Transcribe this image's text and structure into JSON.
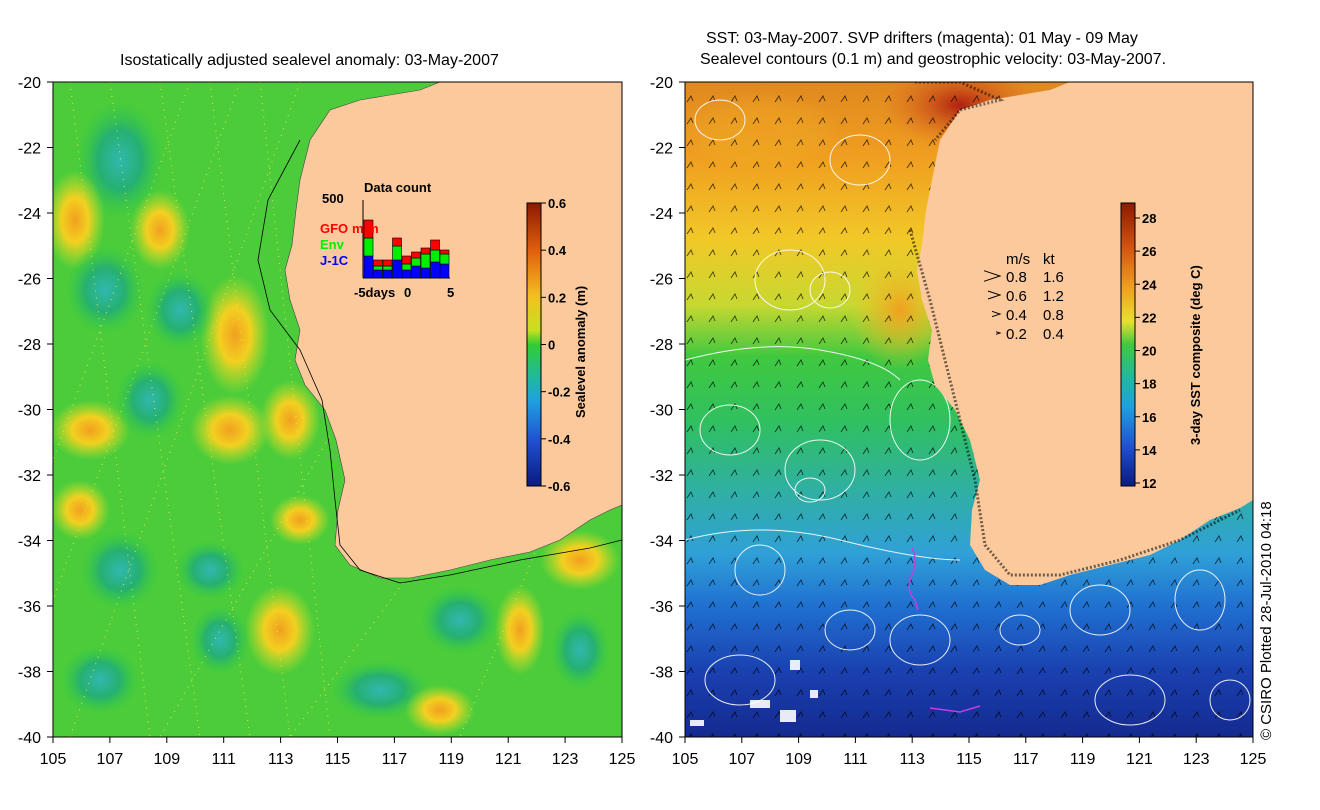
{
  "left_panel": {
    "title": "Isostatically adjusted sealevel anomaly: 03-May-2007",
    "y_ticks": [
      "-20",
      "-22",
      "-24",
      "-26",
      "-28",
      "-30",
      "-32",
      "-34",
      "-36",
      "-38",
      "-40"
    ],
    "x_ticks": [
      "105",
      "107",
      "109",
      "111",
      "113",
      "115",
      "117",
      "119",
      "121",
      "123",
      "125"
    ],
    "colorbar": {
      "label": "Sealevel anomaly (m)",
      "ticks": [
        "0.6",
        "0.4",
        "0.2",
        "0",
        "-0.2",
        "-0.4",
        "-0.6"
      ]
    },
    "inset": {
      "title": "Data count",
      "max_label": "500",
      "x_labels": [
        "-5days",
        "0",
        "5"
      ],
      "legend": [
        {
          "label": "GFO",
          "color": "#ff0000"
        },
        {
          "label": "Env",
          "color": "#00ee00"
        },
        {
          "label": "J-1C",
          "color": "#0000ff"
        }
      ],
      "gfo_suffix": "m m"
    }
  },
  "right_panel": {
    "title_line1": "SST: 03-May-2007. SVP drifters (magenta): 01 May - 09 May",
    "title_line2": "Sealevel contours (0.1 m) and geostrophic velocity: 03-May-2007.",
    "y_ticks": [
      "-20",
      "-22",
      "-24",
      "-26",
      "-28",
      "-30",
      "-32",
      "-34",
      "-36",
      "-38",
      "-40"
    ],
    "x_ticks": [
      "105",
      "107",
      "109",
      "111",
      "113",
      "115",
      "117",
      "119",
      "121",
      "123",
      "125"
    ],
    "colorbar": {
      "label": "3-day SST composite (deg C)",
      "ticks": [
        "28",
        "26",
        "24",
        "22",
        "20",
        "18",
        "16",
        "14",
        "12"
      ]
    },
    "velocity_legend": {
      "header_ms": "m/s",
      "header_kt": "kt",
      "rows": [
        {
          "ms": "0.8",
          "kt": "1.6"
        },
        {
          "ms": "0.6",
          "kt": "1.2"
        },
        {
          "ms": "0.4",
          "kt": "0.8"
        },
        {
          "ms": "0.2",
          "kt": "0.4"
        }
      ]
    }
  },
  "credit": "© CSIRO Plotted 28-Jul-2010 04:18",
  "colors": {
    "land": "#fbc99c",
    "sla_green": "#33cc33",
    "sst_warm": "#e07020",
    "sst_cold": "#1a3aaa"
  }
}
